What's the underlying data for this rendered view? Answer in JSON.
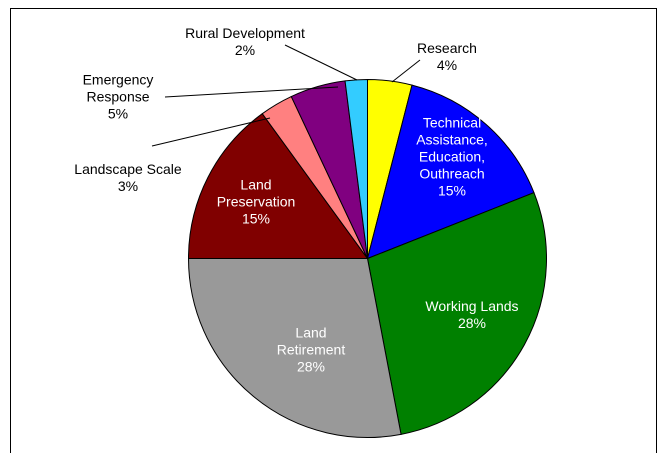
{
  "chart_data": {
    "type": "pie",
    "categories": [
      "Research",
      "Technical Assistance, Education, Outhreach",
      "Working Lands",
      "Land Retirement",
      "Land Preservation",
      "Landscape Scale",
      "Emergency Response",
      "Rural Development"
    ],
    "values": [
      4,
      15,
      28,
      28,
      15,
      3,
      5,
      2
    ],
    "value_labels": [
      "4%",
      "15%",
      "28%",
      "28%",
      "15%",
      "3%",
      "5%",
      "2%"
    ],
    "colors": [
      "#ffff00",
      "#0000ff",
      "#008000",
      "#999999",
      "#800000",
      "#ff8080",
      "#800080",
      "#33ccff"
    ]
  }
}
